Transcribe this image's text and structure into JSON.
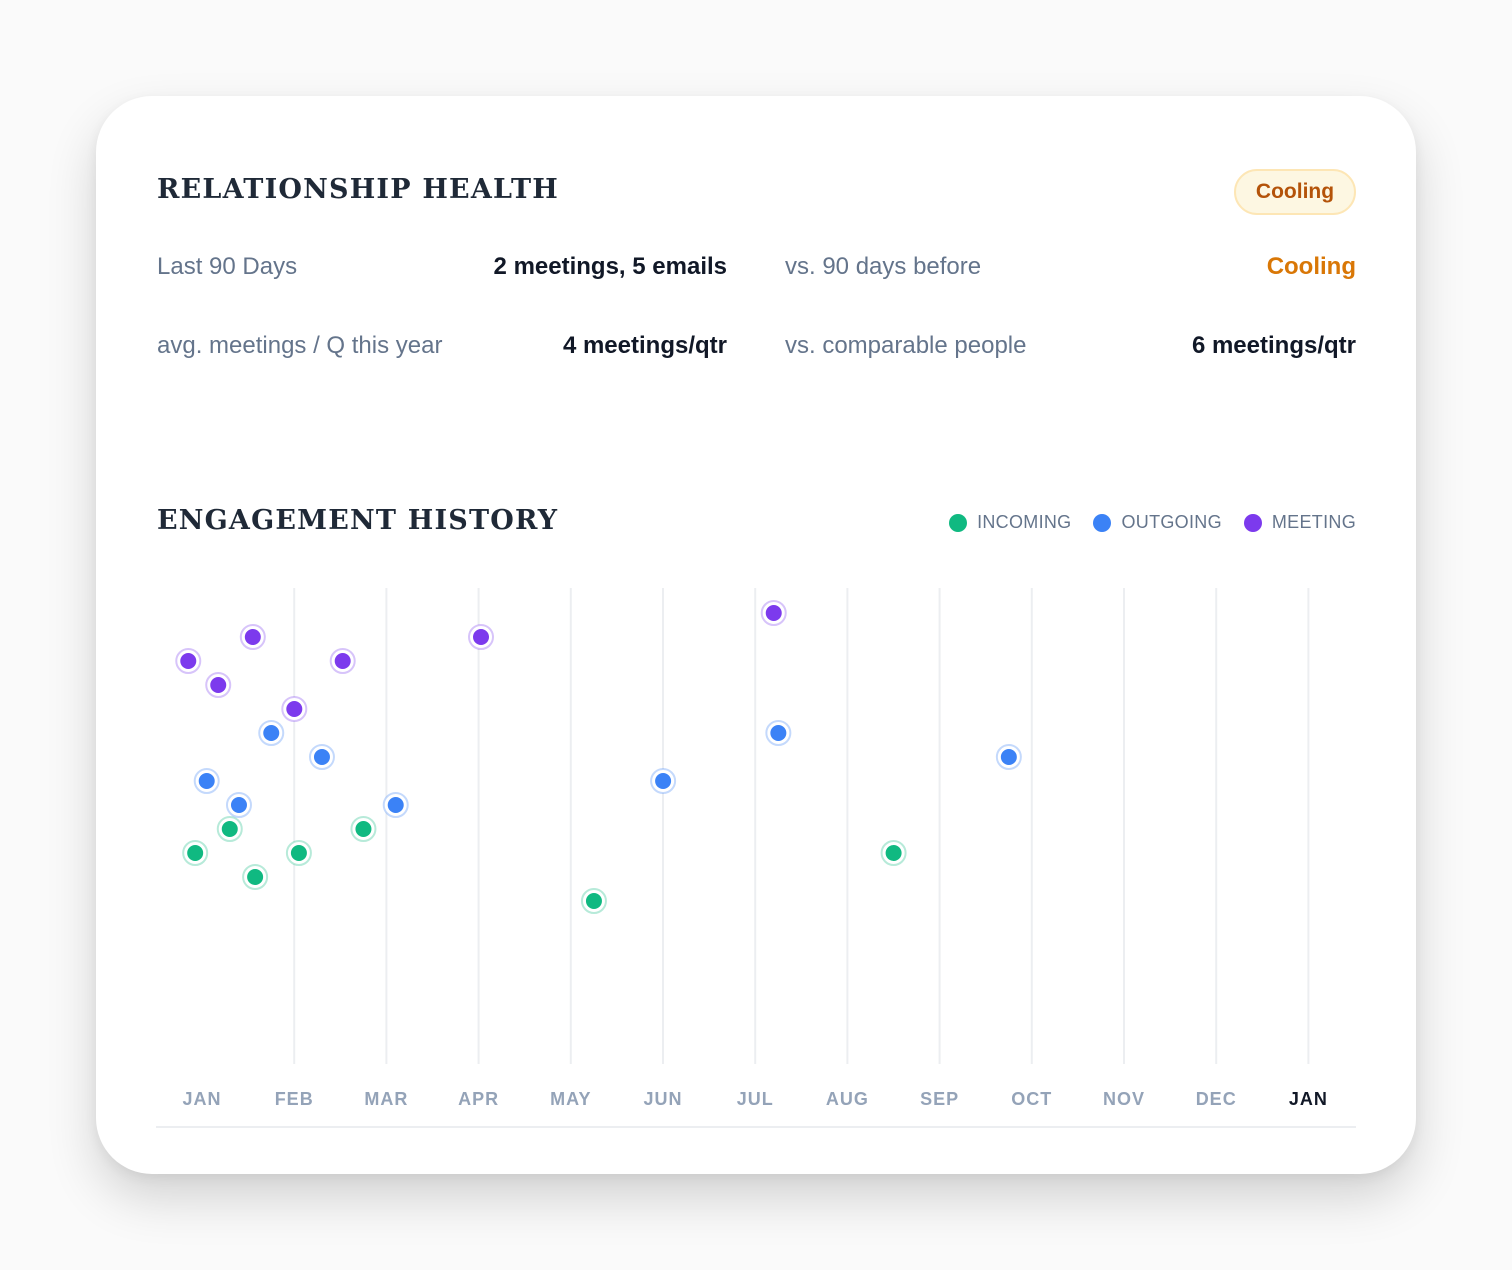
{
  "health": {
    "title": "RELATIONSHIP HEALTH",
    "badge": "Cooling",
    "stats": [
      {
        "label": "Last 90 Days",
        "value": "2 meetings, 5 emails"
      },
      {
        "label": "vs. 90 days before",
        "value": "Cooling"
      },
      {
        "label": "avg. meetings / Q this year",
        "value": "4 meetings/qtr"
      },
      {
        "label": "vs. comparable people",
        "value": "6 meetings/qtr"
      }
    ],
    "colors": {
      "badge_text": "#b45309",
      "cooling_text": "#d97706"
    }
  },
  "engagement": {
    "title": "ENGAGEMENT HISTORY",
    "legend": [
      {
        "label": "INCOMING",
        "color": "#10b981"
      },
      {
        "label": "OUTGOING",
        "color": "#3b82f6"
      },
      {
        "label": "MEETING",
        "color": "#7c3aed"
      }
    ]
  },
  "chart_data": {
    "type": "scatter",
    "x_ticks": [
      "JAN",
      "FEB",
      "MAR",
      "APR",
      "MAY",
      "JUN",
      "JUL",
      "AUG",
      "SEP",
      "OCT",
      "NOV",
      "DEC",
      "JAN"
    ],
    "current_tick_index": 12,
    "grid": "vertical",
    "series": [
      {
        "name": "INCOMING",
        "color": "#10b981",
        "points": [
          {
            "x": 0.85,
            "y": 7
          },
          {
            "x": 1.6,
            "y": 8
          },
          {
            "x": 2.15,
            "y": 6
          },
          {
            "x": 3.1,
            "y": 7
          },
          {
            "x": 4.5,
            "y": 8
          },
          {
            "x": 9.5,
            "y": 5
          },
          {
            "x": 16.0,
            "y": 7
          }
        ]
      },
      {
        "name": "OUTGOING",
        "color": "#3b82f6",
        "points": [
          {
            "x": 1.1,
            "y": 10
          },
          {
            "x": 1.8,
            "y": 9
          },
          {
            "x": 2.5,
            "y": 12
          },
          {
            "x": 3.6,
            "y": 11
          },
          {
            "x": 5.2,
            "y": 9
          },
          {
            "x": 11.0,
            "y": 10
          },
          {
            "x": 13.5,
            "y": 12
          },
          {
            "x": 18.5,
            "y": 11
          }
        ]
      },
      {
        "name": "MEETING",
        "color": "#7c3aed",
        "points": [
          {
            "x": 0.7,
            "y": 15
          },
          {
            "x": 1.35,
            "y": 14
          },
          {
            "x": 2.1,
            "y": 16
          },
          {
            "x": 3.0,
            "y": 13
          },
          {
            "x": 4.05,
            "y": 15
          },
          {
            "x": 7.05,
            "y": 16
          },
          {
            "x": 13.4,
            "y": 17
          }
        ]
      }
    ]
  }
}
